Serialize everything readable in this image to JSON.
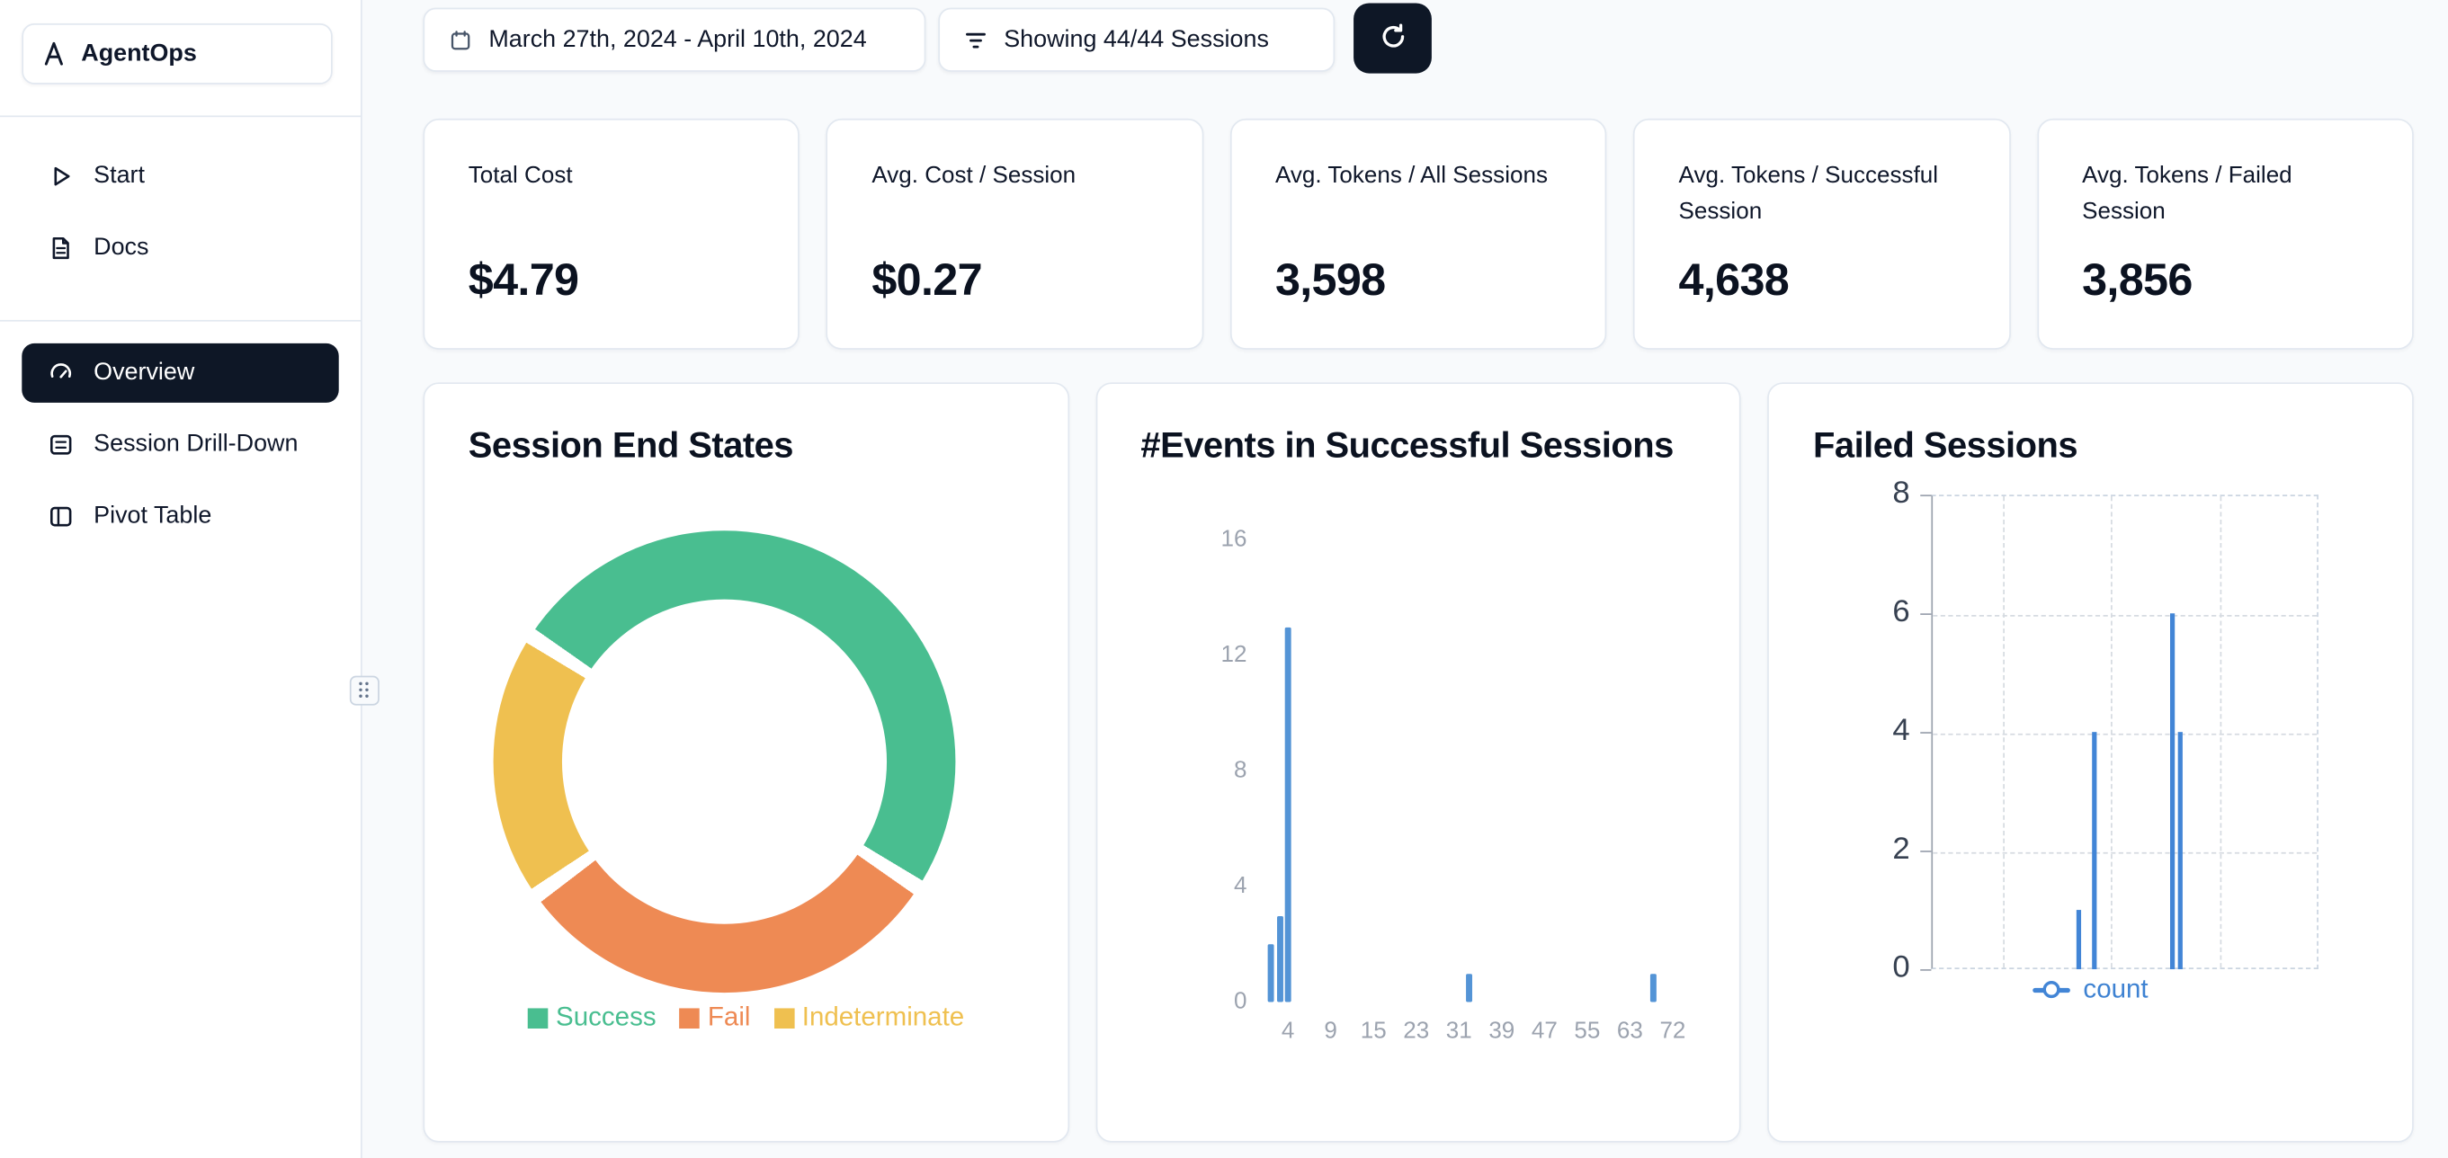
{
  "app": {
    "name": "AgentOps"
  },
  "sidebar": {
    "items": [
      {
        "label": "Start",
        "icon": "play-icon",
        "active": false
      },
      {
        "label": "Docs",
        "icon": "document-icon",
        "active": false
      },
      {
        "label": "Overview",
        "icon": "gauge-icon",
        "active": true
      },
      {
        "label": "Session Drill-Down",
        "icon": "rows-icon",
        "active": false
      },
      {
        "label": "Pivot Table",
        "icon": "columns-icon",
        "active": false
      }
    ]
  },
  "topbar": {
    "date_range": "March 27th, 2024 - April 10th, 2024",
    "sessions_filter": "Showing 44/44 Sessions",
    "refresh_icon": "refresh-icon"
  },
  "stats": [
    {
      "label": "Total Cost",
      "value": "$4.79"
    },
    {
      "label": "Avg. Cost / Session",
      "value": "$0.27"
    },
    {
      "label": "Avg. Tokens / All Sessions",
      "value": "3,598"
    },
    {
      "label": "Avg. Tokens / Successful Session",
      "value": "4,638"
    },
    {
      "label": "Avg. Tokens / Failed Session",
      "value": "3,856"
    }
  ],
  "colors": {
    "page_bg": "#F8FAFC",
    "card_border": "#E2E8F0",
    "active_nav_bg": "#0E1726",
    "success": "#49BE90",
    "fail": "#EE8A54",
    "indeterminate": "#EFC050",
    "bar_blue": "#5494D6",
    "line_blue": "#4285D6",
    "muted_axis_text": "#9CA3AF"
  },
  "chart_data": [
    {
      "type": "pie",
      "variant": "donut",
      "title": "Session End States",
      "segments": [
        {
          "label": "Success",
          "color": "#49BE90",
          "percent_est": 50
        },
        {
          "label": "Fail",
          "color": "#EE8A54",
          "percent_est": 31
        },
        {
          "label": "Indeterminate",
          "color": "#EFC050",
          "percent_est": 19
        }
      ],
      "start_angle_deg": -57,
      "legend_position": "bottom",
      "note": "segment values not labeled on screen; percents estimated from arc lengths"
    },
    {
      "type": "bar",
      "title": "#Events in Successful Sessions",
      "points": [
        {
          "x": 2,
          "count": 2
        },
        {
          "x": 3,
          "count": 3
        },
        {
          "x": 4,
          "count": 13
        },
        {
          "x": 33,
          "count": 1
        },
        {
          "x": 68,
          "count": 1
        }
      ],
      "xticks": [
        4,
        9,
        15,
        23,
        31,
        39,
        47,
        55,
        63,
        72
      ],
      "yticks": [
        0,
        4,
        8,
        12,
        16
      ],
      "ylim": [
        0,
        16
      ],
      "bar_color": "#5494D6",
      "grid": false
    },
    {
      "type": "line",
      "style": "impulse-spikes",
      "title": "Failed Sessions",
      "series": [
        {
          "name": "count",
          "color": "#4285D6",
          "points": [
            {
              "x_frac": 0.375,
              "y": 1
            },
            {
              "x_frac": 0.415,
              "y": 4
            },
            {
              "x_frac": 0.617,
              "y": 6
            },
            {
              "x_frac": 0.637,
              "y": 4
            }
          ]
        }
      ],
      "yticks": [
        0,
        2,
        4,
        6,
        8
      ],
      "ylim": [
        0,
        8
      ],
      "grid": "dashed",
      "legend_position": "bottom",
      "note": "x axis unlabeled; spike positions stored as fraction of plot width"
    }
  ]
}
